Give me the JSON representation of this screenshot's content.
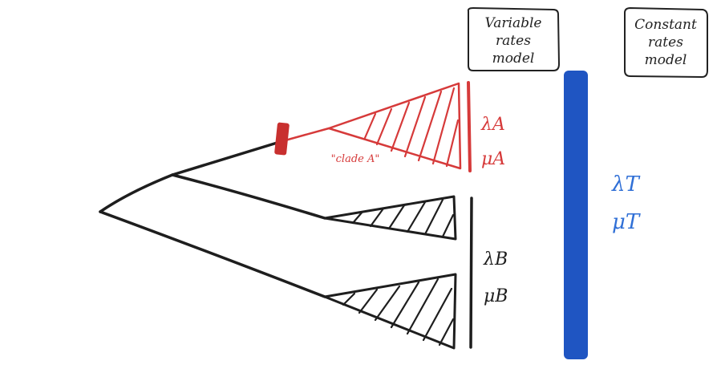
{
  "boxes": {
    "variable": {
      "lines": [
        "Variable",
        "rates",
        "model"
      ]
    },
    "constant": {
      "lines": [
        "Constant",
        "rates",
        "model"
      ]
    }
  },
  "clade_label": "\"clade A\"",
  "params": {
    "A": {
      "lambda": "λA",
      "mu": "μA"
    },
    "B": {
      "lambda": "λB",
      "mu": "μB"
    },
    "T": {
      "lambda": "λT",
      "mu": "μT"
    }
  },
  "colors": {
    "tree": "#1e1e1e",
    "clade_a": "#d63a3a",
    "constant_bar": "#1f55c2",
    "constant_text": "#2f6fd6"
  }
}
